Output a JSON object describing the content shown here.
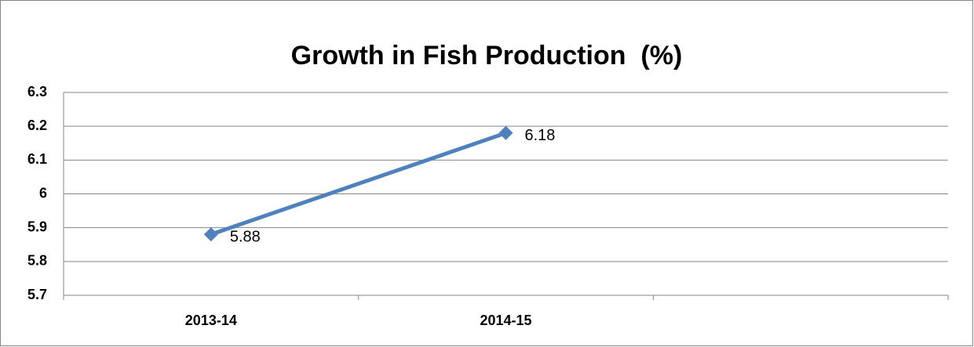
{
  "chart_data": {
    "type": "line",
    "title": "Growth in Fish Production  (%)",
    "categories": [
      "2013-14",
      "2014-15",
      null
    ],
    "values": [
      5.88,
      6.18,
      null
    ],
    "color": "#4f81bd",
    "ylim": [
      5.7,
      6.3
    ],
    "yticks": [
      5.7,
      5.8,
      5.9,
      6,
      6.1,
      6.2,
      6.3
    ],
    "grid": true
  }
}
